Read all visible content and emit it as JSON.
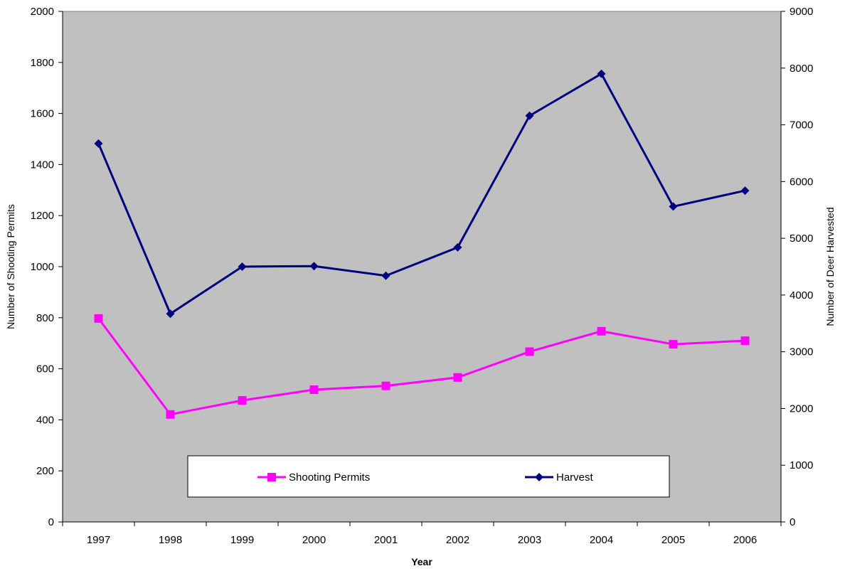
{
  "chart_data": {
    "type": "line",
    "title": "",
    "xlabel": "Year",
    "ylabel": "Number of Shooting Permits",
    "y2label": "Number of Deer Harvested",
    "categories": [
      "1997",
      "1998",
      "1999",
      "2000",
      "2001",
      "2002",
      "2003",
      "2004",
      "2005",
      "2006"
    ],
    "ylim": [
      0,
      2000
    ],
    "y2lim": [
      0,
      9000
    ],
    "yticks": [
      0,
      200,
      400,
      600,
      800,
      1000,
      1200,
      1400,
      1600,
      1800,
      2000
    ],
    "y2ticks": [
      0,
      1000,
      2000,
      3000,
      4000,
      5000,
      6000,
      7000,
      8000,
      9000
    ],
    "grid": false,
    "plot_background": "#c0c0c0",
    "legend_position": "bottom-center inside plot",
    "series": [
      {
        "name": "Shooting Permits",
        "axis": "left",
        "color": "#ff00ff",
        "marker": "square",
        "values": [
          797,
          421,
          476,
          518,
          533,
          566,
          667,
          747,
          696,
          710
        ]
      },
      {
        "name": "Harvest",
        "axis": "right",
        "color": "#000080",
        "marker": "diamond",
        "values": [
          6670,
          3670,
          4500,
          4510,
          4340,
          4840,
          7160,
          7900,
          5560,
          5840
        ]
      }
    ]
  }
}
